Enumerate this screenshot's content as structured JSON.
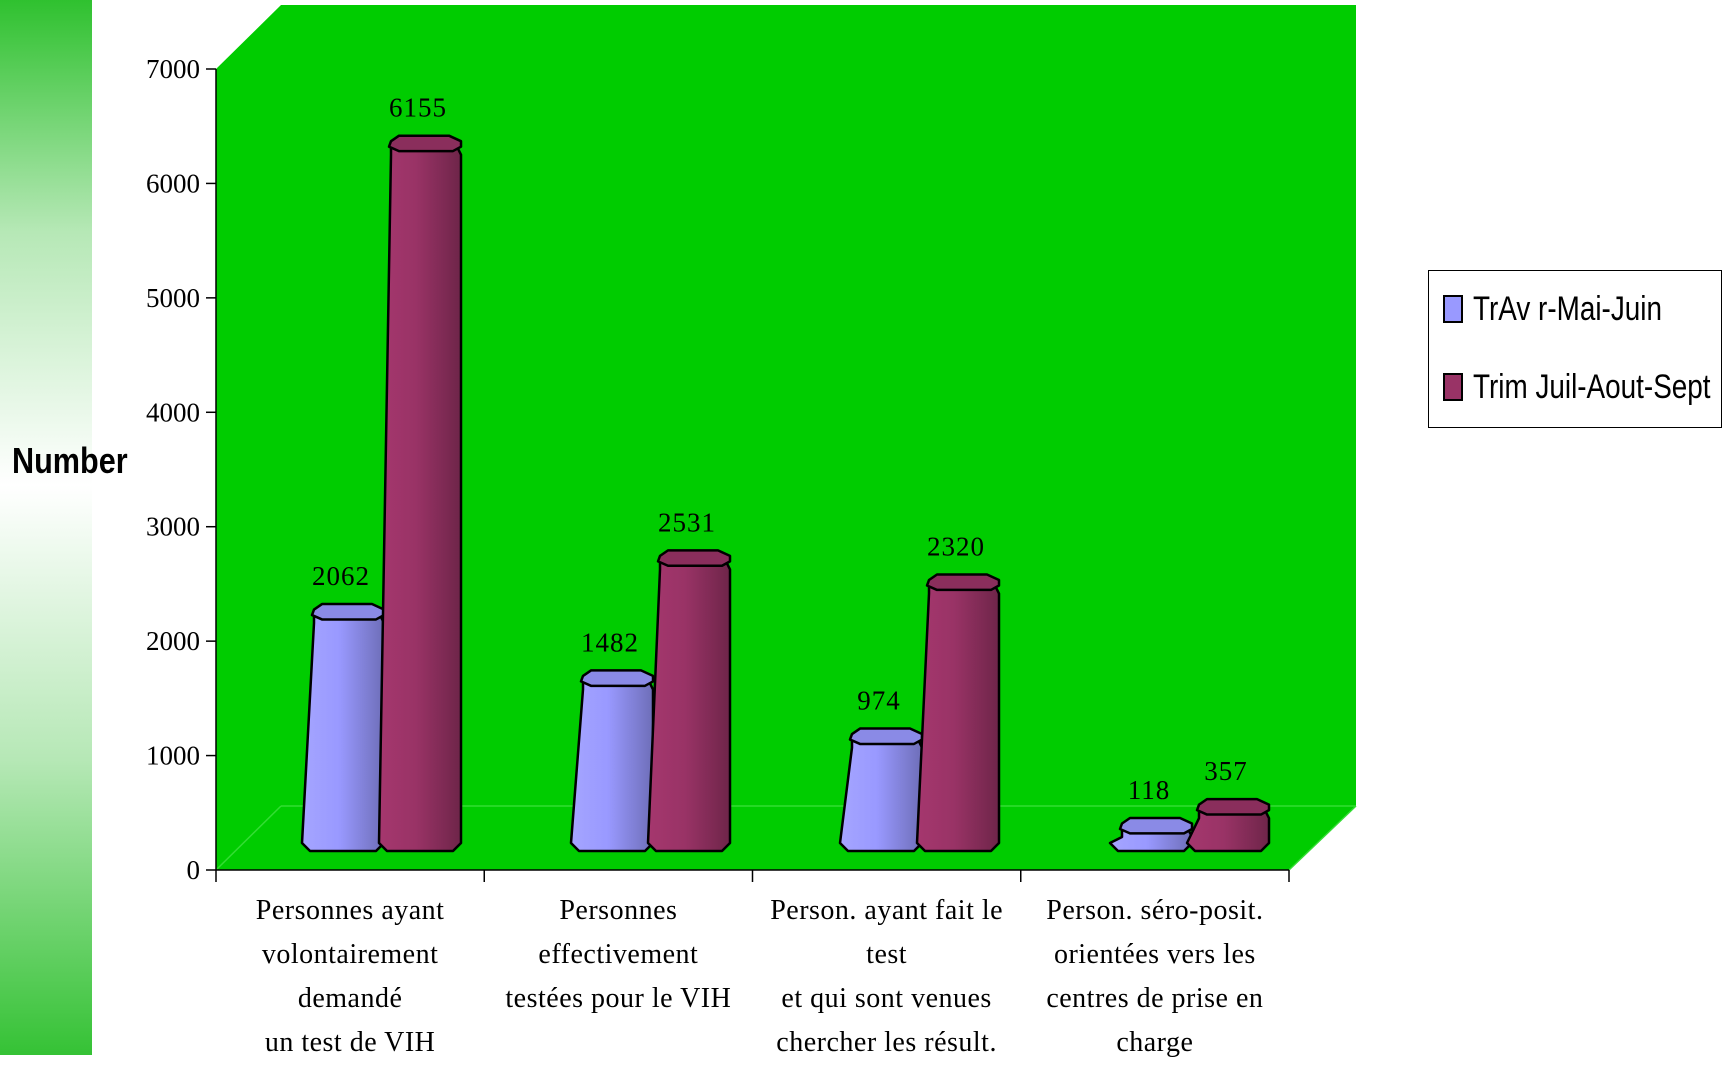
{
  "chart_data": {
    "type": "bar",
    "title": "",
    "xlabel": "",
    "ylabel": "Number",
    "ylim": [
      0,
      7000
    ],
    "yticks": [
      "0",
      "1000",
      "2000",
      "3000",
      "4000",
      "5000",
      "6000",
      "7000"
    ],
    "categories": [
      "Personnes ayant volontairement demandé un test de VIH",
      "Personnes effectivement testées pour le VIH",
      "Person. ayant fait le test et qui sont venues chercher les résult.",
      "Person. séro-posit. orientées vers les centres de prise en charge"
    ],
    "category_lines": [
      [
        "Personnes ayant",
        "volontairement demandé",
        "un test de VIH"
      ],
      [
        "Personnes effectivement",
        "testées pour le VIH"
      ],
      [
        "Person. ayant fait le test",
        "et qui sont venues",
        "chercher les résult."
      ],
      [
        "Person. séro-posit.",
        "orientées vers les",
        "centres de prise en",
        "charge"
      ]
    ],
    "series": [
      {
        "name": "TrAv r-Mai-Juin",
        "values": [
          2062,
          1482,
          974,
          118
        ],
        "labels": [
          "2062",
          "1482",
          "974",
          "118"
        ],
        "color": "#9999ff"
      },
      {
        "name": "Trim Juil-Aout-Sept",
        "values": [
          6155,
          2531,
          2320,
          357
        ],
        "labels": [
          "6155",
          "2531",
          "2320",
          "357"
        ],
        "color": "#993366"
      }
    ],
    "wall_color": "#00cc00",
    "legend_position": "right",
    "grid": false
  }
}
